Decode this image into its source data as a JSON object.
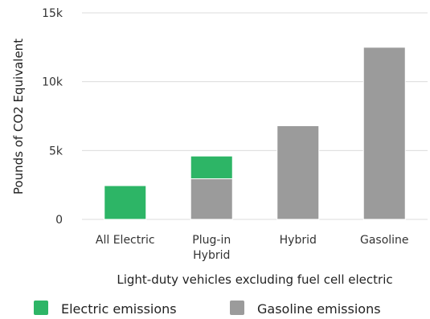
{
  "chart_data": {
    "type": "bar",
    "stacked": true,
    "categories": [
      "All Electric",
      "Plug-in\nHybrid",
      "Hybrid",
      "Gasoline"
    ],
    "series": [
      {
        "name": "Gasoline emissions",
        "color": "#9b9b9b",
        "values": [
          0,
          2950,
          6800,
          12500
        ]
      },
      {
        "name": "Electric emissions",
        "color": "#2db566",
        "values": [
          2450,
          1650,
          0,
          0
        ]
      }
    ],
    "yticks": [
      0,
      5000,
      10000,
      15000
    ],
    "yticklabels": [
      "0",
      "5k",
      "10k",
      "15k"
    ],
    "ylim": [
      0,
      15000
    ],
    "ylabel": "Pounds of CO2 Equivalent",
    "xlabel": "Light-duty vehicles excluding fuel cell electric",
    "grid": true,
    "legend": {
      "position": "bottom",
      "items": [
        {
          "label": "Electric emissions",
          "color": "#2db566"
        },
        {
          "label": "Gasoline emissions",
          "color": "#9b9b9b"
        }
      ]
    }
  }
}
